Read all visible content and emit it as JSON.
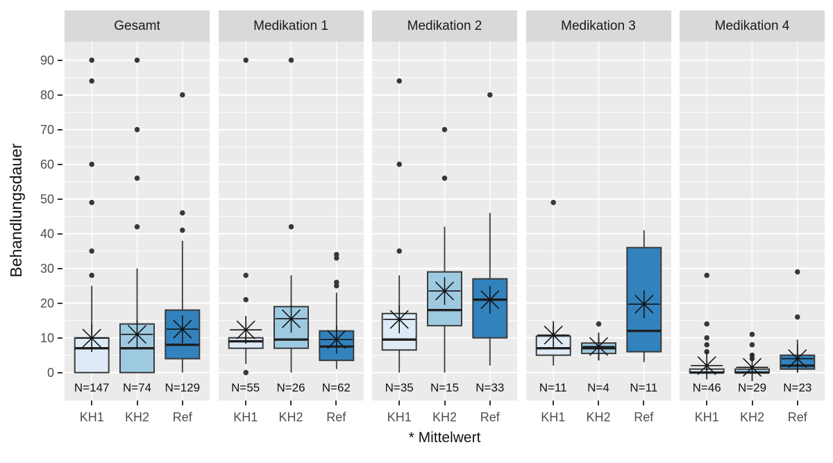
{
  "chart_data": {
    "type": "boxplot",
    "title": "",
    "ylabel": "Behandlungsdauer",
    "mean_note": "* Mittelwert",
    "categories": [
      "KH1",
      "KH2",
      "Ref"
    ],
    "y_ticks": [
      0,
      10,
      20,
      30,
      40,
      50,
      60,
      70,
      80,
      90
    ],
    "ylim": [
      -8,
      95
    ],
    "grid": true,
    "legend_position": "none",
    "colors": {
      "kh1_fill": "#deebf7",
      "kh2_fill": "#9ecae1",
      "ref_fill": "#3182bd",
      "box_border": "#3a3a3a",
      "median": "#1f1f1f",
      "outlier": "#383838",
      "mean": "#141414",
      "panel_bg": "#ebebeb",
      "strip_bg": "#d9d9d9",
      "grid_line": "#ffffff",
      "axis_text": "#4d4d4d"
    },
    "panels": [
      {
        "label": "Gesamt",
        "boxes": [
          {
            "category": "KH1",
            "n_label": "N=147",
            "n": 147,
            "fill": "#deebf7",
            "whisker_low": 0,
            "q1": 0,
            "median": 7,
            "q3": 10,
            "whisker_high": 25,
            "mean": 9.9,
            "outliers": [
              28,
              35,
              49,
              60,
              84,
              90
            ]
          },
          {
            "category": "KH2",
            "n_label": "N=74",
            "n": 74,
            "fill": "#9ecae1",
            "whisker_low": 0,
            "q1": 0,
            "median": 7,
            "q3": 14,
            "whisker_high": 30,
            "mean": 11,
            "outliers": [
              42,
              56,
              70,
              90
            ]
          },
          {
            "category": "Ref",
            "n_label": "N=129",
            "n": 129,
            "fill": "#3182bd",
            "whisker_low": 0,
            "q1": 4,
            "median": 8,
            "q3": 18,
            "whisker_high": 38,
            "mean": 12.5,
            "outliers": [
              41,
              46,
              80
            ]
          }
        ]
      },
      {
        "label": "Medikation 1",
        "boxes": [
          {
            "category": "KH1",
            "n_label": "N=55",
            "n": 55,
            "fill": "#deebf7",
            "whisker_low": 2.5,
            "q1": 7,
            "median": 9,
            "q3": 10,
            "whisker_high": 11,
            "mean": 12.3,
            "outliers": [
              0,
              21,
              28,
              90
            ]
          },
          {
            "category": "KH2",
            "n_label": "N=26",
            "n": 26,
            "fill": "#9ecae1",
            "whisker_low": 0,
            "q1": 7,
            "median": 9.5,
            "q3": 19,
            "whisker_high": 28,
            "mean": 15.5,
            "outliers": [
              42,
              90
            ]
          },
          {
            "category": "Ref",
            "n_label": "N=62",
            "n": 62,
            "fill": "#3182bd",
            "whisker_low": 1,
            "q1": 3.5,
            "median": 7.5,
            "q3": 12,
            "whisker_high": 23,
            "mean": 9.5,
            "outliers": [
              25,
              26,
              33,
              34
            ]
          }
        ]
      },
      {
        "label": "Medikation 2",
        "boxes": [
          {
            "category": "KH1",
            "n_label": "N=35",
            "n": 35,
            "fill": "#deebf7",
            "whisker_low": 0,
            "q1": 6.5,
            "median": 9.5,
            "q3": 17,
            "whisker_high": 28,
            "mean": 15.3,
            "outliers": [
              35,
              60,
              84
            ]
          },
          {
            "category": "KH2",
            "n_label": "N=15",
            "n": 15,
            "fill": "#9ecae1",
            "whisker_low": 0,
            "q1": 13.5,
            "median": 18,
            "q3": 29,
            "whisker_high": 42,
            "mean": 23.5,
            "outliers": [
              56,
              70
            ]
          },
          {
            "category": "Ref",
            "n_label": "N=33",
            "n": 33,
            "fill": "#3182bd",
            "whisker_low": 2,
            "q1": 10,
            "median": 21,
            "q3": 27,
            "whisker_high": 46,
            "mean": 21,
            "outliers": [
              80
            ]
          }
        ]
      },
      {
        "label": "Medikation 3",
        "boxes": [
          {
            "category": "KH1",
            "n_label": "N=11",
            "n": 11,
            "fill": "#deebf7",
            "whisker_low": 2,
            "q1": 5,
            "median": 7,
            "q3": 10.5,
            "whisker_high": 13.5,
            "mean": 10.8,
            "outliers": [
              49
            ]
          },
          {
            "category": "KH2",
            "n_label": "N=4",
            "n": 4,
            "fill": "#9ecae1",
            "whisker_low": 3.5,
            "q1": 5.5,
            "median": 7,
            "q3": 8.5,
            "whisker_high": 10,
            "mean": 7.5,
            "outliers": [
              14
            ]
          },
          {
            "category": "Ref",
            "n_label": "N=11",
            "n": 11,
            "fill": "#3182bd",
            "whisker_low": 3,
            "q1": 6,
            "median": 12,
            "q3": 36,
            "whisker_high": 41,
            "mean": 19.7,
            "outliers": []
          }
        ]
      },
      {
        "label": "Medikation 4",
        "boxes": [
          {
            "category": "KH1",
            "n_label": "N=46",
            "n": 46,
            "fill": "#deebf7",
            "whisker_low": 0,
            "q1": 0,
            "median": 0,
            "q3": 1,
            "whisker_high": 2.5,
            "mean": 2,
            "outliers": [
              6,
              8,
              10,
              14,
              28
            ]
          },
          {
            "category": "KH2",
            "n_label": "N=29",
            "n": 29,
            "fill": "#9ecae1",
            "whisker_low": 0,
            "q1": 0,
            "median": 0,
            "q3": 1,
            "whisker_high": 2,
            "mean": 1.5,
            "outliers": [
              4,
              5,
              8,
              11
            ]
          },
          {
            "category": "Ref",
            "n_label": "N=23",
            "n": 23,
            "fill": "#3182bd",
            "whisker_low": 0,
            "q1": 1,
            "median": 2,
            "q3": 5,
            "whisker_high": 9.5,
            "mean": 4,
            "outliers": [
              16,
              29
            ]
          }
        ]
      }
    ]
  }
}
